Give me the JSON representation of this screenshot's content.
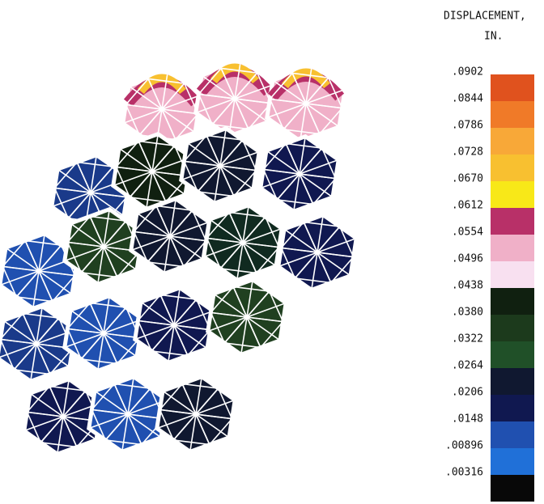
{
  "legend": {
    "title": "DISPLACEMENT,",
    "unit": "IN.",
    "levels": [
      {
        "label": ".0902",
        "color": "#e0521e"
      },
      {
        "label": ".0844",
        "color": "#f07a28"
      },
      {
        "label": ".0786",
        "color": "#f8a838"
      },
      {
        "label": ".0728",
        "color": "#f8c030"
      },
      {
        "label": ".0670",
        "color": "#f8e818"
      },
      {
        "label": ".0612",
        "color": "#b83068"
      },
      {
        "label": ".0554",
        "color": "#f0b0c8"
      },
      {
        "label": ".0496",
        "color": "#f8e0f0"
      },
      {
        "label": ".0438",
        "color": "#102010"
      },
      {
        "label": ".0380",
        "color": "#1c3a1c"
      },
      {
        "label": ".0322",
        "color": "#205028"
      },
      {
        "label": ".0264",
        "color": "#101830"
      },
      {
        "label": ".0206",
        "color": "#101850"
      },
      {
        "label": ".0148",
        "color": "#2050b0"
      },
      {
        "label": ".00896",
        "color": "#2070d8"
      },
      {
        "label": ".00316",
        "color": "#080808"
      }
    ]
  }
}
